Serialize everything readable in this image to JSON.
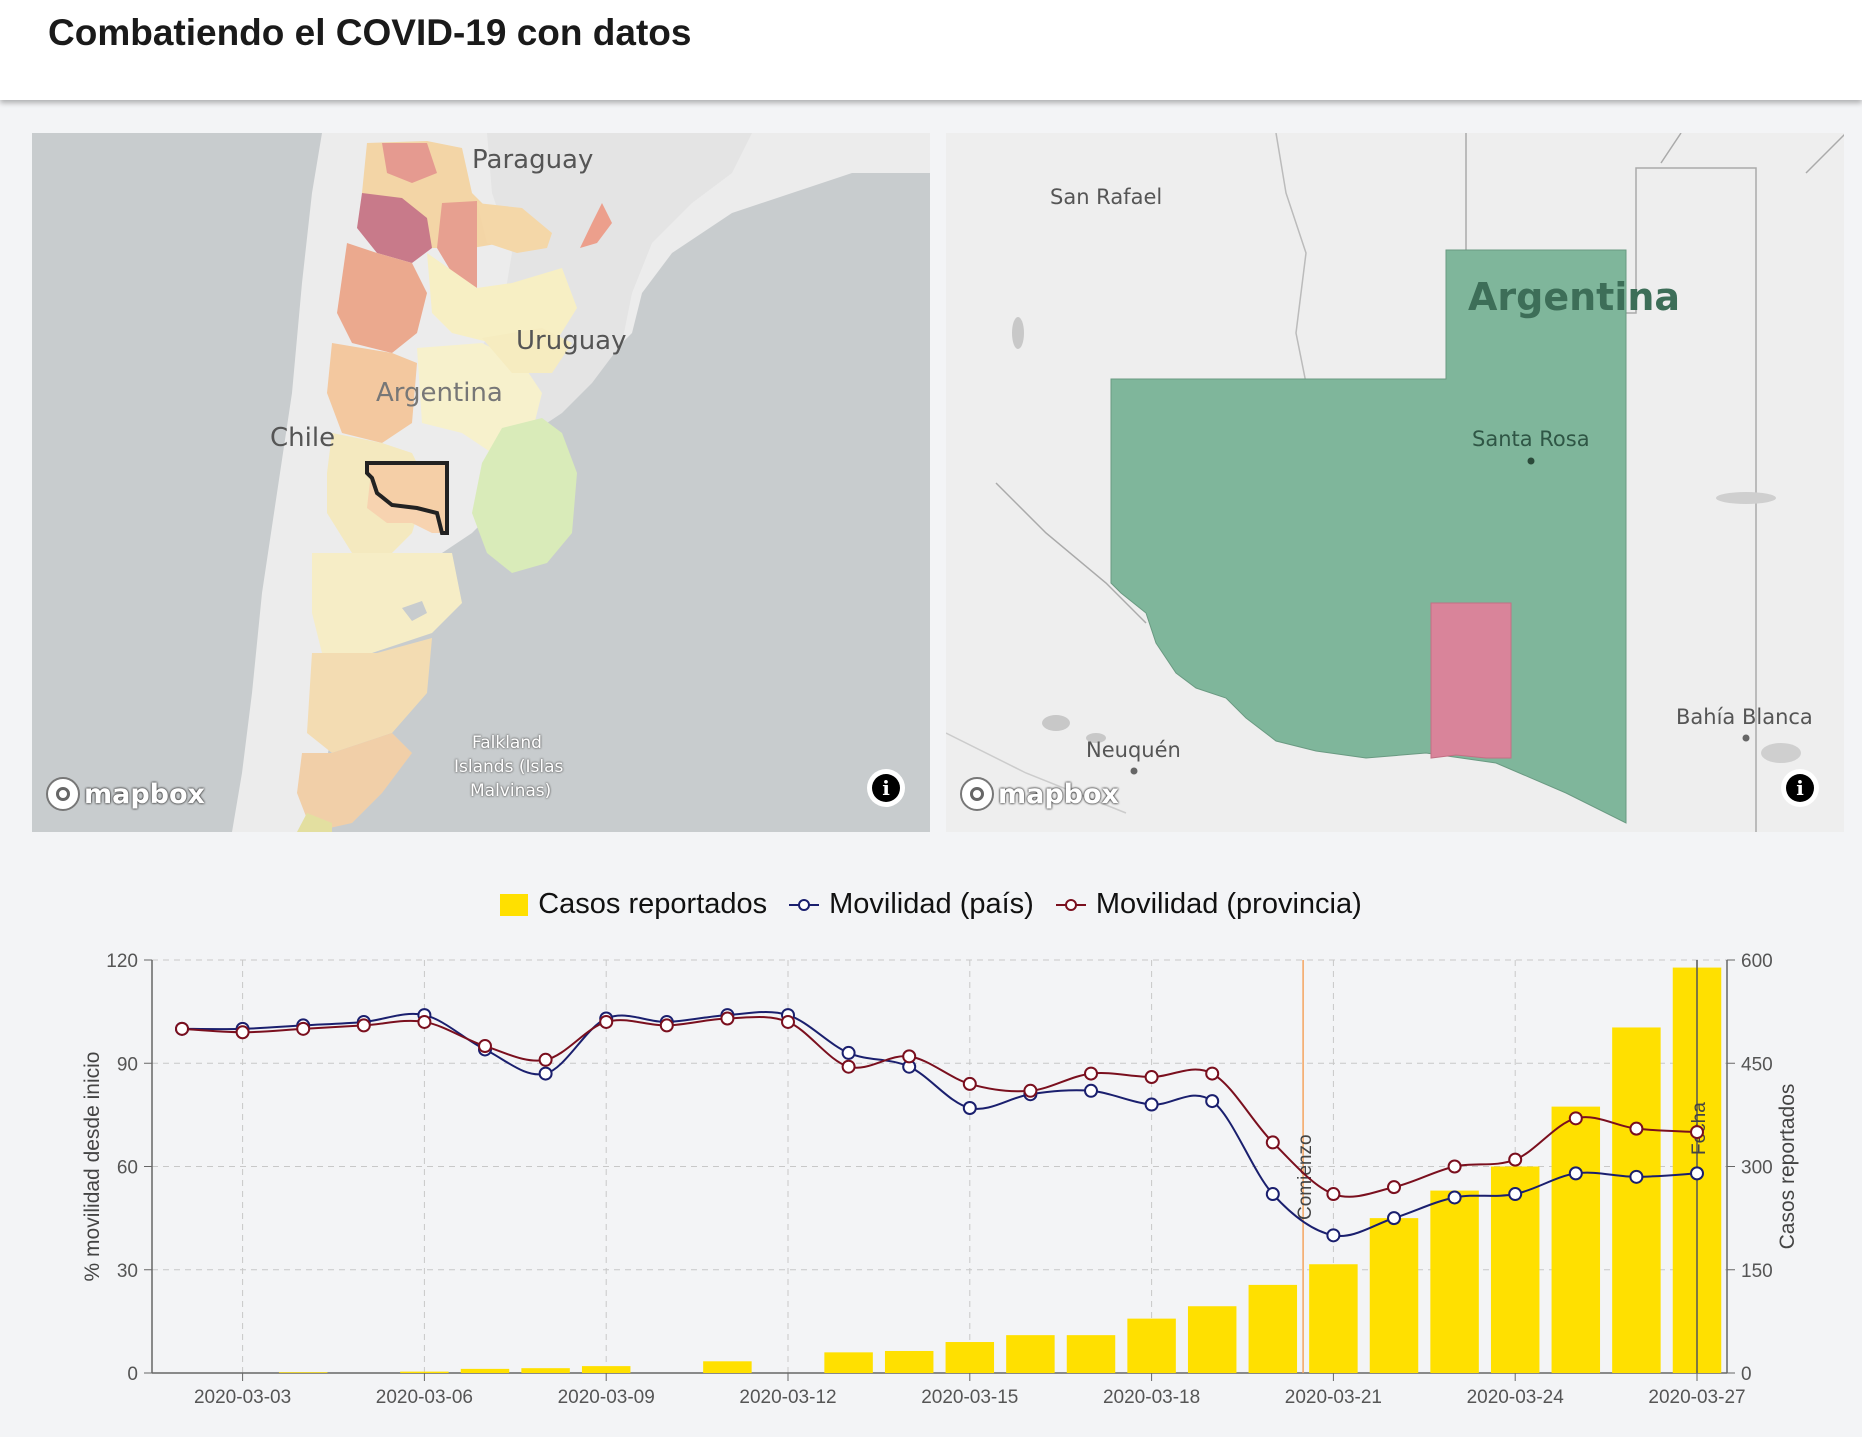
{
  "page": {
    "title": "Combatiendo el COVID-19 con datos"
  },
  "map_left": {
    "labels": {
      "paraguay": "Paraguay",
      "uruguay": "Uruguay",
      "argentina": "Argentina",
      "chile": "Chile",
      "falkland_1": "Falkland",
      "falkland_2": "Islands (Islas",
      "falkland_3": "Malvinas)"
    },
    "attribution": "mapbox",
    "selected_province_outline": "#1a1a1a"
  },
  "map_right": {
    "labels": {
      "san_rafael": "San Rafael",
      "argentina": "Argentina",
      "santa_rosa": "Santa Rosa",
      "neuquen": "Neuquén",
      "bahia_blanca": "Bahía Blanca"
    },
    "attribution": "mapbox",
    "colors": {
      "province_fill": "#7fb69b",
      "selected_department": "#d9849a"
    }
  },
  "legend": {
    "cases": "Casos reportados",
    "mob_country": "Movilidad (país)",
    "mob_province": "Movilidad (provincia)"
  },
  "colors": {
    "cases": "#ffe000",
    "mob_country": "#1a1f6e",
    "mob_province": "#7a0f1e",
    "marker": "#f4a460"
  },
  "chart_data": {
    "type": "bar+line",
    "x_dates": [
      "2020-03-02",
      "2020-03-03",
      "2020-03-04",
      "2020-03-05",
      "2020-03-06",
      "2020-03-07",
      "2020-03-08",
      "2020-03-09",
      "2020-03-10",
      "2020-03-11",
      "2020-03-12",
      "2020-03-13",
      "2020-03-14",
      "2020-03-15",
      "2020-03-16",
      "2020-03-17",
      "2020-03-18",
      "2020-03-19",
      "2020-03-20",
      "2020-03-21",
      "2020-03-22",
      "2020-03-23",
      "2020-03-24",
      "2020-03-25",
      "2020-03-26",
      "2020-03-27"
    ],
    "x_ticks": [
      "2020-03-03",
      "2020-03-06",
      "2020-03-09",
      "2020-03-12",
      "2020-03-15",
      "2020-03-18",
      "2020-03-21",
      "2020-03-24",
      "2020-03-27"
    ],
    "cases": [
      0,
      0,
      1,
      0,
      2,
      6,
      7,
      10,
      0,
      17,
      0,
      30,
      32,
      45,
      55,
      55,
      79,
      97,
      128,
      158,
      225,
      265,
      300,
      387,
      502,
      589
    ],
    "mob_country": [
      100,
      100,
      101,
      102,
      104,
      94,
      87,
      103,
      102,
      104,
      104,
      93,
      89,
      77,
      81,
      82,
      78,
      79,
      52,
      40,
      45,
      51,
      52,
      58,
      57,
      58
    ],
    "mob_province": [
      100,
      99,
      100,
      101,
      102,
      95,
      91,
      102,
      101,
      103,
      102,
      89,
      92,
      84,
      82,
      87,
      86,
      87,
      67,
      52,
      54,
      60,
      62,
      74,
      71,
      70
    ],
    "y_left": {
      "label": "% movilidad desde inicio",
      "ticks": [
        0,
        30,
        60,
        90,
        120
      ],
      "range": [
        0,
        120
      ]
    },
    "y_right": {
      "label": "Casos reportados",
      "ticks": [
        0,
        150,
        300,
        450,
        600
      ],
      "range": [
        0,
        600
      ]
    },
    "markers": [
      {
        "label": "Comienzo",
        "date_index": 18.5
      },
      {
        "label": "Fecha",
        "date_index": 25
      }
    ],
    "grid": true,
    "legend_position": "top"
  }
}
